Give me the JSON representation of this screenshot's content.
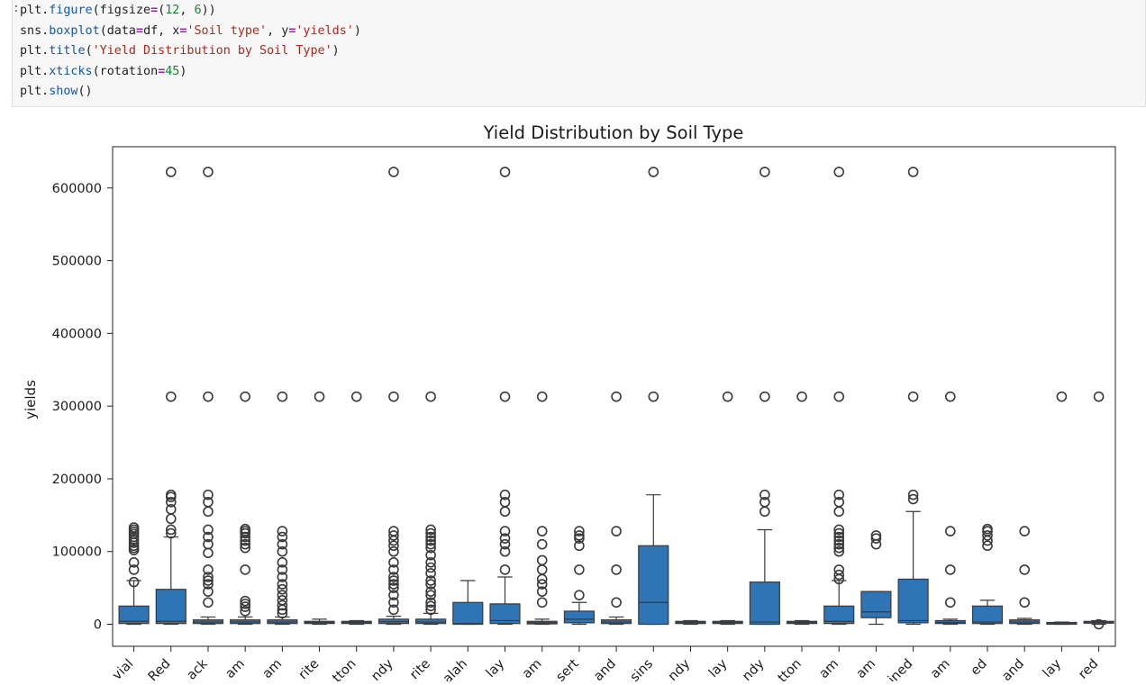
{
  "cell": {
    "prompt": ":",
    "lines": [
      [
        [
          "plt.",
          ""
        ],
        [
          "figure",
          "fn"
        ],
        [
          "(figsize",
          ""
        ],
        [
          "=",
          "eq"
        ],
        [
          "(",
          ""
        ],
        [
          "12",
          "num"
        ],
        [
          ", ",
          ""
        ],
        [
          "6",
          "num"
        ],
        [
          "))",
          ""
        ]
      ],
      [
        [
          "sns.",
          ""
        ],
        [
          "boxplot",
          "fn"
        ],
        [
          "(data",
          ""
        ],
        [
          "=",
          "eq"
        ],
        [
          "df, x",
          ""
        ],
        [
          "=",
          "eq"
        ],
        [
          "'Soil type'",
          "str"
        ],
        [
          ", y",
          ""
        ],
        [
          "=",
          "eq"
        ],
        [
          "'yields'",
          "str"
        ],
        [
          ")",
          ""
        ]
      ],
      [
        [
          "plt.",
          ""
        ],
        [
          "title",
          "fn"
        ],
        [
          "(",
          ""
        ],
        [
          "'Yield Distribution by Soil Type'",
          "str"
        ],
        [
          ")",
          ""
        ]
      ],
      [
        [
          "plt.",
          ""
        ],
        [
          "xticks",
          "fn"
        ],
        [
          "(rotation",
          ""
        ],
        [
          "=",
          "eq"
        ],
        [
          "45",
          "num"
        ],
        [
          ")",
          ""
        ]
      ],
      [
        [
          "plt.",
          ""
        ],
        [
          "show",
          "fn"
        ],
        [
          "()",
          ""
        ]
      ]
    ]
  },
  "chart_data": {
    "type": "box",
    "title": "Yield Distribution by Soil Type",
    "xlabel": "",
    "ylabel": "yields",
    "ylim": [
      -30000,
      645000
    ],
    "yticks": [
      0,
      100000,
      200000,
      300000,
      400000,
      500000,
      600000
    ],
    "ytick_labels": [
      "0",
      "100000",
      "200000",
      "300000",
      "400000",
      "500000",
      "600000"
    ],
    "box_color": "#2f74b5",
    "categories": [
      "vial",
      "Red",
      "ack",
      "am",
      "am",
      "rite",
      "tton",
      "ndy",
      "rite",
      "alah",
      "lay",
      "am",
      "sert",
      "and",
      "sins",
      "ndy",
      "lay",
      "ndy",
      "tton",
      "am",
      "am",
      "ined",
      "am",
      "ed",
      "and",
      "lay",
      "red"
    ],
    "boxes": [
      {
        "q1": 1000,
        "med": 4000,
        "q3": 25000,
        "wlo": 0,
        "whi": 60000,
        "out": [
          58000,
          75000,
          85000,
          102000,
          105000,
          108000,
          112000,
          116000,
          120000,
          124000,
          127000,
          130000,
          133000
        ]
      },
      {
        "q1": 1000,
        "med": 4000,
        "q3": 48000,
        "wlo": 0,
        "whi": 120000,
        "out": [
          125000,
          130000,
          145000,
          158000,
          168000,
          175000,
          178000,
          313000,
          622000
        ]
      },
      {
        "q1": 1000,
        "med": 3000,
        "q3": 6000,
        "wlo": 0,
        "whi": 10000,
        "out": [
          30000,
          45000,
          55000,
          60000,
          65000,
          75000,
          98000,
          110000,
          120000,
          130000,
          155000,
          168000,
          178000,
          313000,
          622000
        ]
      },
      {
        "q1": 1000,
        "med": 3000,
        "q3": 6000,
        "wlo": 0,
        "whi": 10000,
        "out": [
          18000,
          24000,
          28000,
          32000,
          75000,
          105000,
          110000,
          115000,
          120000,
          125000,
          128000,
          131000,
          313000
        ]
      },
      {
        "q1": 1000,
        "med": 3000,
        "q3": 6000,
        "wlo": 0,
        "whi": 10000,
        "out": [
          15000,
          20000,
          26000,
          33000,
          40000,
          48000,
          55000,
          65000,
          75000,
          85000,
          100000,
          110000,
          120000,
          128000,
          313000
        ]
      },
      {
        "q1": 1000,
        "med": 2500,
        "q3": 4000,
        "wlo": 0,
        "whi": 7000,
        "out": [
          313000
        ]
      },
      {
        "q1": 1000,
        "med": 2500,
        "q3": 4000,
        "wlo": 0,
        "whi": 5000,
        "out": [
          313000
        ]
      },
      {
        "q1": 1000,
        "med": 3500,
        "q3": 7000,
        "wlo": 0,
        "whi": 11000,
        "out": [
          20000,
          30000,
          40000,
          50000,
          55000,
          60000,
          65000,
          75000,
          85000,
          100000,
          108000,
          115000,
          122000,
          128000,
          313000,
          622000
        ]
      },
      {
        "q1": 1000,
        "med": 3000,
        "q3": 7000,
        "wlo": 0,
        "whi": 15000,
        "out": [
          20000,
          25000,
          30000,
          40000,
          45000,
          55000,
          60000,
          70000,
          78000,
          85000,
          95000,
          105000,
          110000,
          115000,
          120000,
          125000,
          130000,
          313000
        ]
      },
      {
        "q1": 0,
        "med": 1000,
        "q3": 30000,
        "wlo": 0,
        "whi": 60000,
        "out": []
      },
      {
        "q1": 1000,
        "med": 5000,
        "q3": 28000,
        "wlo": 0,
        "whi": 65000,
        "out": [
          75000,
          100000,
          110000,
          118000,
          128000,
          155000,
          168000,
          178000,
          313000,
          622000
        ]
      },
      {
        "q1": 500,
        "med": 2000,
        "q3": 4000,
        "wlo": 0,
        "whi": 7000,
        "out": [
          30000,
          45000,
          55000,
          62000,
          75000,
          88000,
          110000,
          128000,
          313000
        ]
      },
      {
        "q1": 2000,
        "med": 7000,
        "q3": 18000,
        "wlo": 0,
        "whi": 30000,
        "out": [
          40000,
          75000,
          108000,
          118000,
          122000,
          128000
        ]
      },
      {
        "q1": 1000,
        "med": 3000,
        "q3": 6000,
        "wlo": 0,
        "whi": 10000,
        "out": [
          30000,
          75000,
          128000,
          313000
        ]
      },
      {
        "q1": 0,
        "med": 30000,
        "q3": 108000,
        "wlo": 0,
        "whi": 178000,
        "out": [
          313000,
          622000
        ]
      },
      {
        "q1": 1000,
        "med": 2500,
        "q3": 4000,
        "wlo": 0,
        "whi": 5000,
        "out": []
      },
      {
        "q1": 1000,
        "med": 2500,
        "q3": 4000,
        "wlo": 0,
        "whi": 5000,
        "out": [
          313000
        ]
      },
      {
        "q1": 0,
        "med": 3000,
        "q3": 58000,
        "wlo": 0,
        "whi": 130000,
        "out": [
          155000,
          168000,
          178000,
          313000,
          622000
        ]
      },
      {
        "q1": 1000,
        "med": 2500,
        "q3": 4000,
        "wlo": 0,
        "whi": 5000,
        "out": [
          313000
        ]
      },
      {
        "q1": 1000,
        "med": 4000,
        "q3": 25000,
        "wlo": 0,
        "whi": 60000,
        "out": [
          62000,
          68000,
          75000,
          100000,
          105000,
          110000,
          115000,
          120000,
          125000,
          130000,
          155000,
          168000,
          178000,
          313000,
          622000
        ]
      },
      {
        "q1": 9000,
        "med": 17000,
        "q3": 45000,
        "wlo": 0,
        "whi": 45000,
        "out": [
          110000,
          118000,
          122000
        ]
      },
      {
        "q1": 2000,
        "med": 5000,
        "q3": 62000,
        "wlo": 0,
        "whi": 155000,
        "out": [
          172000,
          178000,
          313000,
          622000
        ]
      },
      {
        "q1": 1000,
        "med": 2500,
        "q3": 5000,
        "wlo": 0,
        "whi": 7000,
        "out": [
          30000,
          75000,
          128000,
          313000
        ]
      },
      {
        "q1": 1000,
        "med": 3000,
        "q3": 25000,
        "wlo": 0,
        "whi": 33000,
        "out": [
          108000,
          115000,
          122000,
          128000,
          131000
        ]
      },
      {
        "q1": 1000,
        "med": 3000,
        "q3": 6000,
        "wlo": 0,
        "whi": 8000,
        "out": [
          30000,
          75000,
          128000
        ]
      },
      {
        "q1": 500,
        "med": 1500,
        "q3": 2500,
        "wlo": 0,
        "whi": 3000,
        "out": [
          313000
        ]
      },
      {
        "q1": 1500,
        "med": 2500,
        "q3": 4000,
        "wlo": 0,
        "whi": 5000,
        "out": [
          0,
          313000
        ]
      }
    ]
  }
}
